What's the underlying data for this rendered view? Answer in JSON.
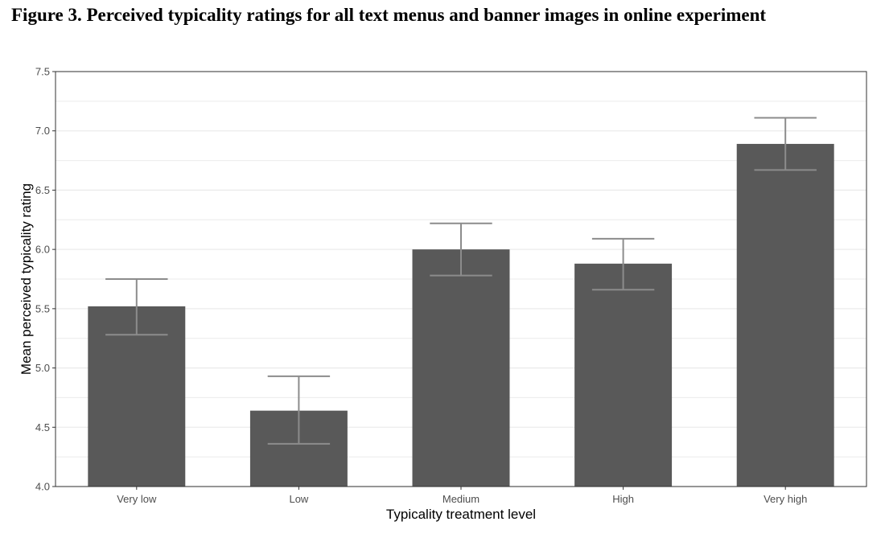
{
  "figure": {
    "title": "Figure 3. Perceived typicality ratings for all text menus and banner images in online experiment"
  },
  "chart_data": {
    "type": "bar",
    "title": "",
    "xlabel": "Typicality treatment level",
    "ylabel": "Mean perceived typicality rating",
    "categories": [
      "Very low",
      "Low",
      "Medium",
      "High",
      "Very high"
    ],
    "values": [
      5.52,
      4.64,
      6.0,
      5.88,
      6.89
    ],
    "error_lower": [
      5.28,
      4.36,
      5.78,
      5.66,
      6.67
    ],
    "error_upper": [
      5.75,
      4.93,
      6.22,
      6.09,
      7.11
    ],
    "ylim": [
      4.0,
      7.5
    ],
    "yticks": [
      4.0,
      4.5,
      5.0,
      5.5,
      6.0,
      6.5,
      7.0,
      7.5
    ],
    "ytick_labels": [
      "4.0",
      "4.5",
      "5.0",
      "5.5",
      "6.0",
      "6.5",
      "7.0",
      "7.5"
    ],
    "grid": true,
    "legend": "none",
    "colors": {
      "bar": "#595959",
      "errorbar": "#8c8c8c",
      "grid": "#ebebeb",
      "panel_border": "#333333"
    }
  }
}
